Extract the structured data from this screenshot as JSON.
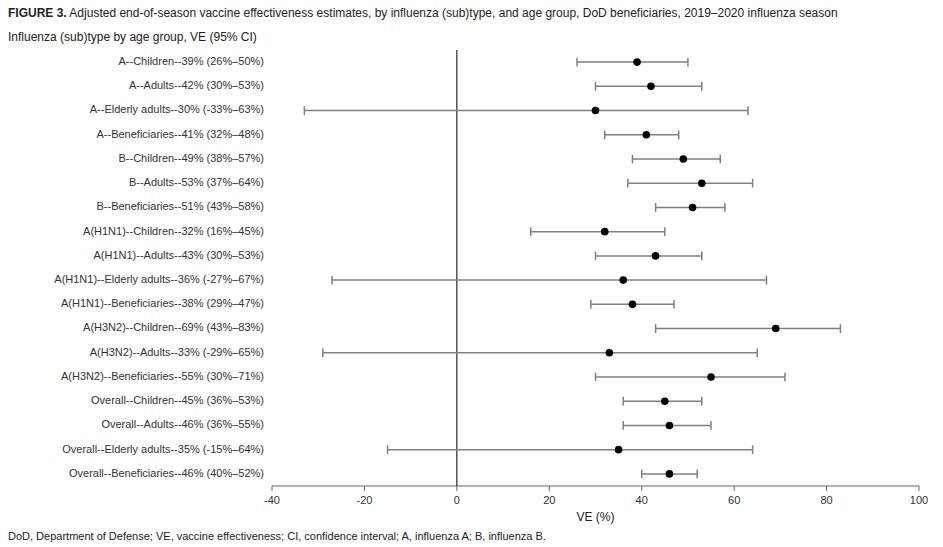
{
  "chart_data": {
    "type": "forest",
    "title": "FIGURE 3.",
    "subtitle": "Adjusted end-of-season vaccine effectiveness estimates, by influenza (sub)type, and age group, DoD beneficiaries, 2019–2020 influenza season",
    "annotations": [
      "Influenza (sub)type by age group, VE (95% CI)",
      "DoD, Department of Defense; VE, vaccine effectiveness; CI, confidence interval; A, influenza A; B, influenza B."
    ],
    "x_label": "VE (%)",
    "categories": [
      "A--Children--39% (26%–50%)",
      "A--Adults--42% (30%–53%)",
      "A--Elderly adults--30% (-33%–63%)",
      "A--Beneficiaries--41% (32%–48%)",
      "B--Children--49% (38%–57%)",
      "B--Adults--53% (37%–64%)",
      "B--Beneficiaries--51% (43%–58%)",
      "A(H1N1)--Children--32% (16%–45%)",
      "A(H1N1)--Adults--43% (30%–53%)",
      "A(H1N1)--Elderly adults--36% (-27%–67%)",
      "A(H1N1)--Beneficiaries--38% (29%–47%)",
      "A(H3N2)--Children--69% (43%–83%)",
      "A(H3N2)--Adults--33% (-29%–65%)",
      "A(H3N2)--Beneficiaries--55% (30%–71%)",
      "Overall--Children--45% (36%–53%)",
      "Overall--Adults--46% (36%–55%)",
      "Overall--Elderly adults--35% (-15%–64%)",
      "Overall--Beneficiaries--46% (40%–52%)"
    ],
    "values": [
      39,
      42,
      30,
      41,
      49,
      53,
      51,
      32,
      43,
      36,
      38,
      69,
      33,
      55,
      45,
      46,
      35,
      46
    ],
    "ci_lower": [
      26,
      30,
      -33,
      32,
      38,
      37,
      43,
      16,
      30,
      -27,
      29,
      43,
      -29,
      30,
      36,
      36,
      -15,
      40
    ],
    "ci_upper": [
      50,
      53,
      63,
      48,
      57,
      64,
      58,
      45,
      53,
      67,
      47,
      83,
      65,
      71,
      53,
      55,
      64,
      52
    ],
    "reference_line": 0,
    "xlim": [
      -40,
      100
    ],
    "xticks": [
      -40,
      -20,
      0,
      20,
      40,
      60,
      80,
      100
    ],
    "color": "#000000",
    "orientation": "horizontal"
  }
}
